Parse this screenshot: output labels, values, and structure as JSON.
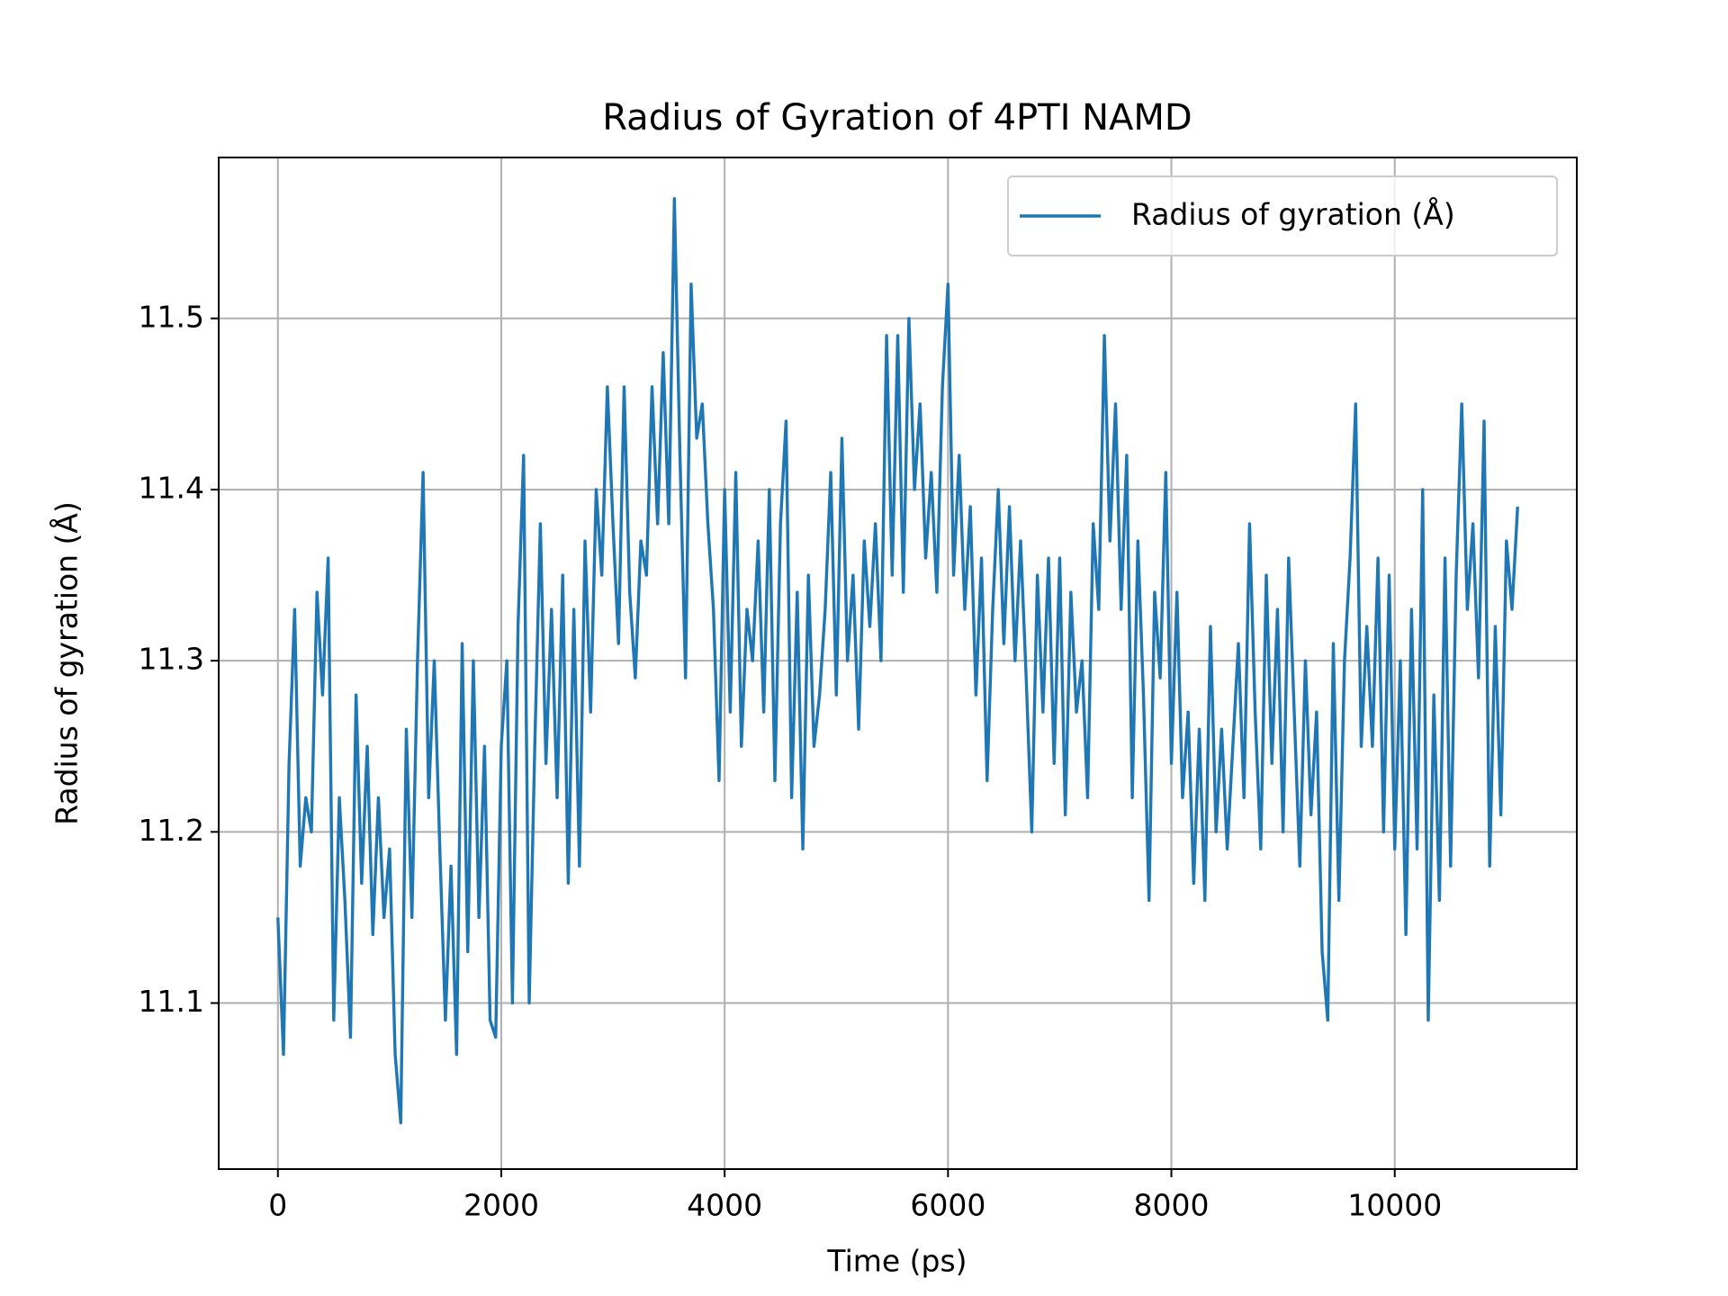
{
  "chart_data": {
    "type": "line",
    "title": "Radius of Gyration of 4PTI NAMD",
    "x_label": "Time (ps)",
    "y_label": "Radius of gyration (Å)",
    "x": [
      0,
      50,
      100,
      150,
      200,
      250,
      300,
      350,
      400,
      450,
      500,
      550,
      600,
      650,
      700,
      750,
      800,
      850,
      900,
      950,
      1000,
      1050,
      1100,
      1150,
      1200,
      1250,
      1300,
      1350,
      1400,
      1450,
      1500,
      1550,
      1600,
      1650,
      1700,
      1750,
      1800,
      1850,
      1900,
      1950,
      2000,
      2050,
      2100,
      2150,
      2200,
      2250,
      2300,
      2350,
      2400,
      2450,
      2500,
      2550,
      2600,
      2650,
      2700,
      2750,
      2800,
      2850,
      2900,
      2950,
      3000,
      3050,
      3100,
      3150,
      3200,
      3250,
      3300,
      3350,
      3400,
      3450,
      3500,
      3550,
      3600,
      3650,
      3700,
      3750,
      3800,
      3850,
      3900,
      3950,
      4000,
      4050,
      4100,
      4150,
      4200,
      4250,
      4300,
      4350,
      4400,
      4450,
      4500,
      4550,
      4600,
      4650,
      4700,
      4750,
      4800,
      4850,
      4900,
      4950,
      5000,
      5050,
      5100,
      5150,
      5200,
      5250,
      5300,
      5350,
      5400,
      5450,
      5500,
      5550,
      5600,
      5650,
      5700,
      5750,
      5800,
      5850,
      5900,
      5950,
      6000,
      6050,
      6100,
      6150,
      6200,
      6250,
      6300,
      6350,
      6400,
      6450,
      6500,
      6550,
      6600,
      6650,
      6700,
      6750,
      6800,
      6850,
      6900,
      6950,
      7000,
      7050,
      7100,
      7150,
      7200,
      7250,
      7300,
      7350,
      7400,
      7450,
      7500,
      7550,
      7600,
      7650,
      7700,
      7750,
      7800,
      7850,
      7900,
      7950,
      8000,
      8050,
      8100,
      8150,
      8200,
      8250,
      8300,
      8350,
      8400,
      8450,
      8500,
      8550,
      8600,
      8650,
      8700,
      8750,
      8800,
      8850,
      8900,
      8950,
      9000,
      9050,
      9100,
      9150,
      9200,
      9250,
      9300,
      9350,
      9400,
      9450,
      9500,
      9550,
      9600,
      9650,
      9700,
      9750,
      9800,
      9850,
      9900,
      9950,
      10000,
      10050,
      10100,
      10150,
      10200,
      10250,
      10300,
      10350,
      10400,
      10450,
      10500,
      10550,
      10600,
      10650,
      10700,
      10750,
      10800,
      10850,
      10900,
      10950,
      11000,
      11050,
      11100
    ],
    "series": [
      {
        "name": "Radius of gyration (Å)",
        "color": "#1f77b4",
        "values": [
          11.15,
          11.07,
          11.24,
          11.33,
          11.18,
          11.22,
          11.2,
          11.34,
          11.28,
          11.36,
          11.09,
          11.22,
          11.16,
          11.08,
          11.28,
          11.17,
          11.25,
          11.14,
          11.22,
          11.15,
          11.19,
          11.07,
          11.03,
          11.26,
          11.15,
          11.3,
          11.41,
          11.22,
          11.3,
          11.19,
          11.09,
          11.18,
          11.07,
          11.31,
          11.13,
          11.3,
          11.15,
          11.25,
          11.09,
          11.08,
          11.25,
          11.3,
          11.1,
          11.32,
          11.42,
          11.1,
          11.25,
          11.38,
          11.24,
          11.33,
          11.22,
          11.35,
          11.17,
          11.33,
          11.18,
          11.37,
          11.27,
          11.4,
          11.35,
          11.46,
          11.38,
          11.31,
          11.46,
          11.34,
          11.29,
          11.37,
          11.35,
          11.46,
          11.38,
          11.48,
          11.38,
          11.57,
          11.42,
          11.29,
          11.52,
          11.43,
          11.45,
          11.38,
          11.33,
          11.23,
          11.4,
          11.27,
          11.41,
          11.25,
          11.33,
          11.3,
          11.37,
          11.27,
          11.4,
          11.23,
          11.38,
          11.44,
          11.22,
          11.34,
          11.19,
          11.35,
          11.25,
          11.28,
          11.33,
          11.41,
          11.28,
          11.43,
          11.3,
          11.35,
          11.26,
          11.37,
          11.32,
          11.38,
          11.3,
          11.49,
          11.35,
          11.49,
          11.34,
          11.5,
          11.4,
          11.45,
          11.36,
          11.41,
          11.34,
          11.46,
          11.52,
          11.35,
          11.42,
          11.33,
          11.39,
          11.28,
          11.36,
          11.23,
          11.33,
          11.4,
          11.31,
          11.39,
          11.3,
          11.37,
          11.29,
          11.2,
          11.35,
          11.27,
          11.36,
          11.24,
          11.36,
          11.21,
          11.34,
          11.27,
          11.3,
          11.22,
          11.38,
          11.33,
          11.49,
          11.37,
          11.45,
          11.33,
          11.42,
          11.22,
          11.37,
          11.28,
          11.16,
          11.34,
          11.29,
          11.41,
          11.24,
          11.34,
          11.22,
          11.27,
          11.17,
          11.26,
          11.16,
          11.32,
          11.2,
          11.26,
          11.19,
          11.25,
          11.31,
          11.22,
          11.38,
          11.27,
          11.19,
          11.35,
          11.24,
          11.33,
          11.2,
          11.36,
          11.27,
          11.18,
          11.3,
          11.21,
          11.27,
          11.13,
          11.09,
          11.31,
          11.16,
          11.3,
          11.36,
          11.45,
          11.25,
          11.32,
          11.25,
          11.36,
          11.2,
          11.35,
          11.19,
          11.3,
          11.14,
          11.33,
          11.19,
          11.4,
          11.09,
          11.28,
          11.16,
          11.36,
          11.18,
          11.35,
          11.45,
          11.33,
          11.38,
          11.29,
          11.44,
          11.18,
          11.32,
          11.21,
          11.37,
          11.33,
          11.39
        ]
      }
    ],
    "xlim": [
      -530,
      11630
    ],
    "ylim": [
      11.003,
      11.594
    ],
    "xticks": [
      0,
      2000,
      4000,
      6000,
      8000,
      10000
    ],
    "yticks": [
      11.1,
      11.2,
      11.3,
      11.4,
      11.5
    ],
    "grid": true,
    "legend": "upper right"
  }
}
